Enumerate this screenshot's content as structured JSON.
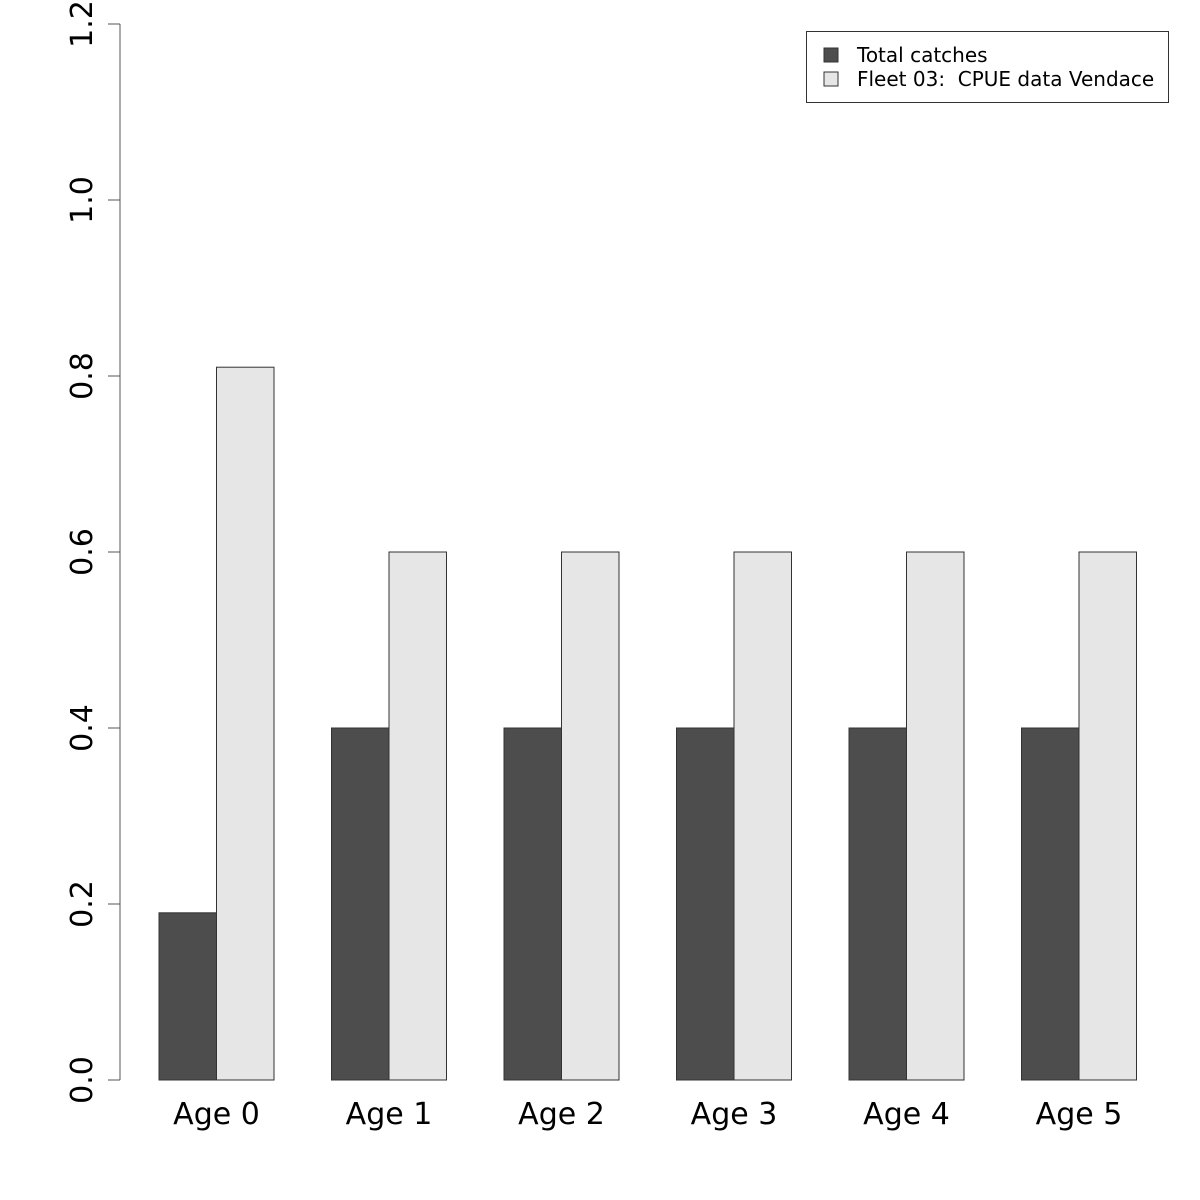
{
  "chart_data": {
    "type": "bar",
    "categories": [
      "Age 0",
      "Age 1",
      "Age 2",
      "Age 3",
      "Age 4",
      "Age 5"
    ],
    "series": [
      {
        "name": "Total catches",
        "values": [
          0.19,
          0.4,
          0.4,
          0.4,
          0.4,
          0.4
        ],
        "color": "#4d4d4d"
      },
      {
        "name": "Fleet 03:  CPUE data Vendace",
        "values": [
          0.81,
          0.6,
          0.6,
          0.6,
          0.6,
          0.6
        ],
        "color": "#e6e6e6"
      }
    ],
    "yticks": [
      "0.0",
      "0.2",
      "0.4",
      "0.6",
      "0.8",
      "1.0",
      "1.2"
    ],
    "ylim": [
      0,
      1.2
    ],
    "title": "",
    "xlabel": "",
    "ylabel": "",
    "legend_position": "top-right",
    "grid": false
  }
}
